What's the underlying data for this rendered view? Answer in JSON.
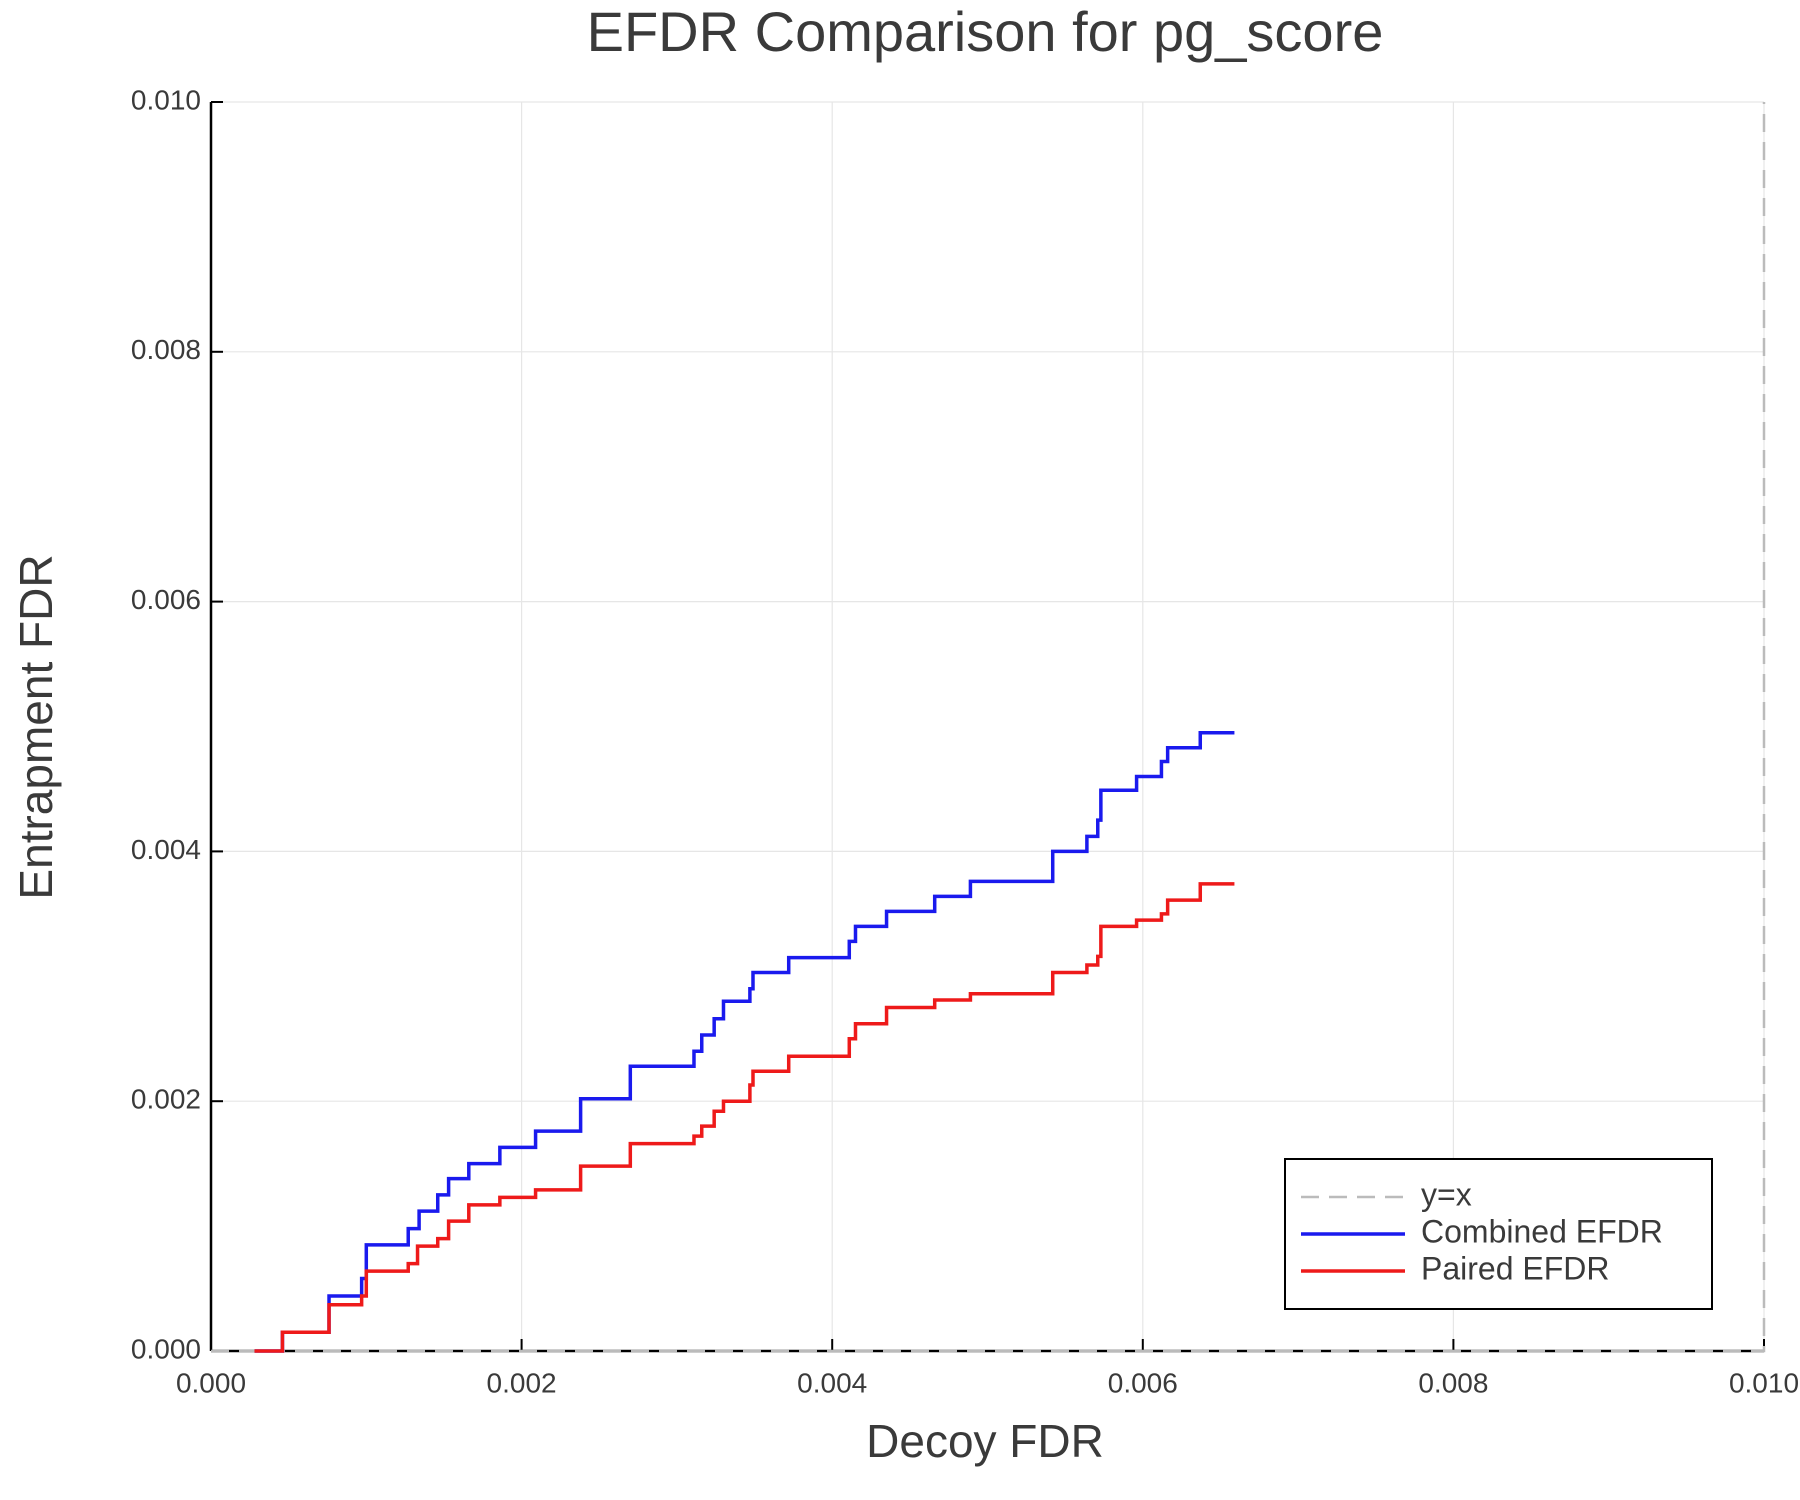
{
  "chart_data": {
    "type": "line",
    "title": "EFDR Comparison for pg_score",
    "x_label": "Decoy FDR",
    "y_label": "Entrapment FDR",
    "xlim": [
      0,
      0.01
    ],
    "ylim": [
      0,
      0.01
    ],
    "xticks": [
      {
        "value": 0,
        "label": "0.000"
      },
      {
        "value": 0.002,
        "label": "0.002"
      },
      {
        "value": 0.004,
        "label": "0.004"
      },
      {
        "value": 0.006,
        "label": "0.006"
      },
      {
        "value": 0.008,
        "label": "0.008"
      },
      {
        "value": 0.01,
        "label": "0.010"
      }
    ],
    "yticks": [
      {
        "value": 0,
        "label": "0.000"
      },
      {
        "value": 0.002,
        "label": "0.002"
      },
      {
        "value": 0.004,
        "label": "0.004"
      },
      {
        "value": 0.006,
        "label": "0.006"
      },
      {
        "value": 0.008,
        "label": "0.008"
      },
      {
        "value": 0.01,
        "label": "0.010"
      }
    ],
    "grid": true,
    "legend": "lower right",
    "step": "post",
    "series": [
      {
        "name": "y=x",
        "color": "#bbbbbb",
        "dashed": true,
        "x": [
          0,
          0.01
        ],
        "values": [
          0,
          0.01
        ]
      },
      {
        "name": "Combined EFDR",
        "color": "#1a1aee",
        "x": [
          0.00028,
          0.00046,
          0.00076,
          0.00097,
          0.001,
          0.00127,
          0.00134,
          0.00146,
          0.00153,
          0.00166,
          0.00186,
          0.00209,
          0.00238,
          0.0027,
          0.00311,
          0.00316,
          0.00324,
          0.0033,
          0.00347,
          0.00349,
          0.00372,
          0.00411,
          0.00415,
          0.00435,
          0.00466,
          0.00489,
          0.00542,
          0.00564,
          0.00571,
          0.00573,
          0.00596,
          0.00612,
          0.00616,
          0.00637,
          0.00659
        ],
        "values": [
          0,
          0.00015,
          0.00044,
          0.00058,
          0.00085,
          0.00098,
          0.00112,
          0.00125,
          0.00138,
          0.0015,
          0.00163,
          0.00176,
          0.00202,
          0.00228,
          0.0024,
          0.00253,
          0.00266,
          0.0028,
          0.0029,
          0.00303,
          0.00315,
          0.00328,
          0.0034,
          0.00352,
          0.00364,
          0.00376,
          0.004,
          0.00412,
          0.00425,
          0.00449,
          0.0046,
          0.00472,
          0.00483,
          0.00495,
          0.00495
        ]
      },
      {
        "name": "Paired EFDR",
        "color": "#ee1a1a",
        "x": [
          0.00028,
          0.00046,
          0.00076,
          0.00097,
          0.001,
          0.00127,
          0.00133,
          0.00146,
          0.00153,
          0.00166,
          0.00186,
          0.00209,
          0.00238,
          0.0027,
          0.00311,
          0.00316,
          0.00324,
          0.0033,
          0.00347,
          0.00349,
          0.00372,
          0.00411,
          0.00415,
          0.00435,
          0.00466,
          0.00489,
          0.00542,
          0.00564,
          0.00571,
          0.00573,
          0.00596,
          0.00612,
          0.00616,
          0.00637,
          0.00659
        ],
        "values": [
          0,
          0.00015,
          0.00037,
          0.00044,
          0.00064,
          0.0007,
          0.00084,
          0.0009,
          0.00104,
          0.00117,
          0.00123,
          0.00129,
          0.00148,
          0.00166,
          0.00172,
          0.0018,
          0.00192,
          0.002,
          0.00213,
          0.00224,
          0.00236,
          0.0025,
          0.00262,
          0.00275,
          0.00281,
          0.00286,
          0.00303,
          0.00309,
          0.00316,
          0.0034,
          0.00345,
          0.0035,
          0.00361,
          0.00374,
          0.00374
        ]
      }
    ]
  }
}
